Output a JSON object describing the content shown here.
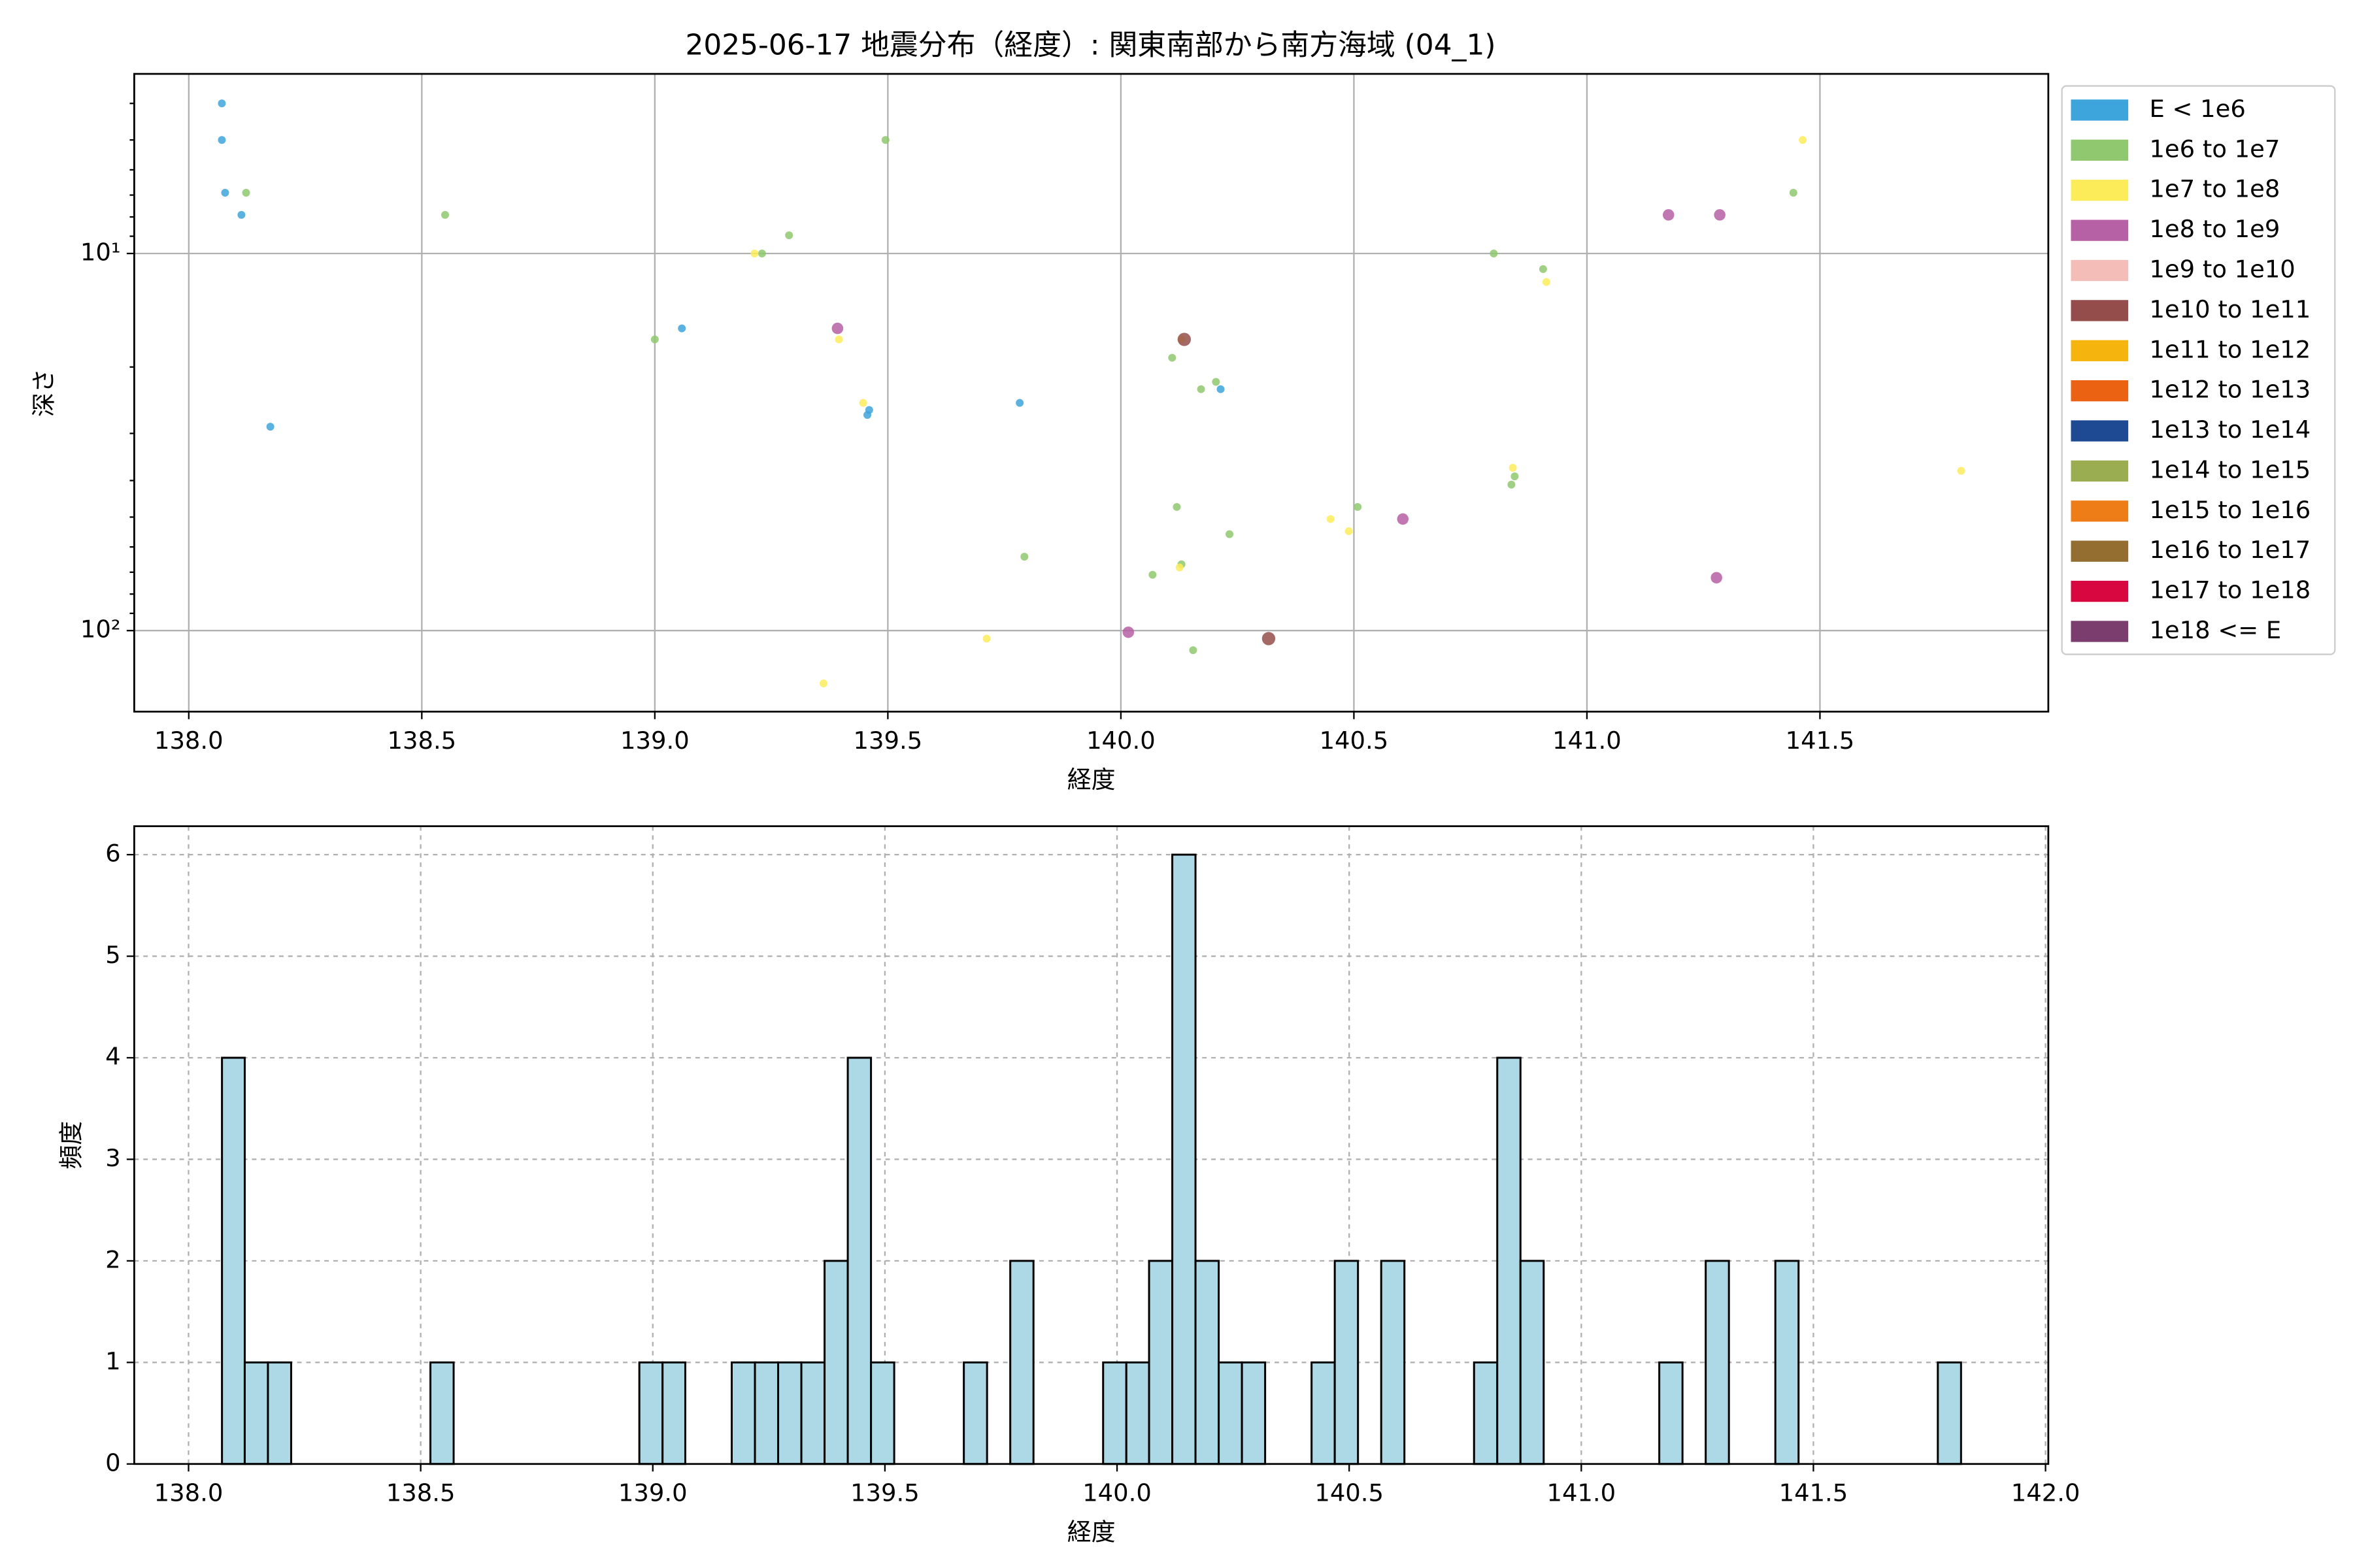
{
  "chart_data": [
    {
      "type": "scatter",
      "title": "2025-06-17 地震分布（経度）: 関東南部から南方海域 (04_1)",
      "x_label": "経度",
      "y_label": "深さ",
      "xlim": [
        137.883,
        141.99
      ],
      "ylim": [
        3.34,
        164
      ],
      "y_scale": "log",
      "y_inverted": true,
      "grid": true,
      "legend": "outside right",
      "xticks": [
        {
          "value": 138,
          "label": "138.0"
        },
        {
          "value": 138.5,
          "label": "138.5"
        },
        {
          "value": 139,
          "label": "139.0"
        },
        {
          "value": 139.5,
          "label": "139.5"
        },
        {
          "value": 140,
          "label": "140.0"
        },
        {
          "value": 140.5,
          "label": "140.5"
        },
        {
          "value": 141,
          "label": "141.0"
        },
        {
          "value": 141.5,
          "label": "141.5"
        }
      ],
      "yticks": [
        {
          "value": 10,
          "label": "10¹"
        },
        {
          "value": 100,
          "label": "10²"
        }
      ],
      "yminorticks": [
        4,
        5,
        6,
        7,
        8,
        9,
        20,
        30,
        40,
        50,
        60,
        70,
        80,
        90
      ],
      "series": [
        {
          "name": "E < 1e6",
          "color": "#3ea4dc",
          "x": [
            138.071,
            138.071,
            138.078,
            138.113,
            138.175,
            139.058,
            139.46,
            139.456,
            139.783,
            140.214
          ],
          "values": [
            4.0,
            5.0,
            6.9,
            7.9,
            28.8,
            15.8,
            26,
            26.8,
            24.9,
            22.9
          ]
        },
        {
          "name": "1e6 to 1e7",
          "color": "#8fc86f",
          "x": [
            138.123,
            138.55,
            139.495,
            139.23,
            139.288,
            139.0,
            139.793,
            140.068,
            140.11,
            140.12,
            140.13,
            140.172,
            140.204,
            140.155,
            140.233,
            140.508,
            140.8,
            140.906,
            140.845,
            140.838,
            141.443
          ],
          "values": [
            6.9,
            7.9,
            5.0,
            10,
            8.95,
            16.9,
            63.7,
            71.1,
            18.9,
            47,
            66.7,
            22.9,
            21.9,
            112.7,
            55.5,
            47,
            10,
            11,
            39,
            41,
            6.9
          ]
        },
        {
          "name": "1e7 to 1e8",
          "color": "#fdec5a",
          "x": [
            139.214,
            139.395,
            139.447,
            139.362,
            139.712,
            140.13,
            140.126,
            140.45,
            140.489,
            140.841,
            140.913,
            141.463,
            141.803
          ],
          "values": [
            10,
            16.9,
            24.9,
            138,
            105,
            16.9,
            68,
            50.6,
            54.5,
            37,
            11.9,
            5.0,
            37.7
          ]
        },
        {
          "name": "1e8 to 1e9",
          "color": "#b660a5",
          "x": [
            139.392,
            140.016,
            140.605,
            141.175,
            141.285,
            141.278
          ],
          "values": [
            15.8,
            101,
            50.6,
            7.9,
            7.9,
            72.4
          ]
        },
        {
          "name": "1e9 to 1e10",
          "color": "#f4bdb7",
          "x": [],
          "values": []
        },
        {
          "name": "1e10 to 1e11",
          "color": "#944d4a",
          "x": [
            140.317,
            140.136
          ],
          "values": [
            105,
            16.9
          ]
        },
        {
          "name": "1e11 to 1e12",
          "color": "#f6b40f",
          "x": [],
          "values": []
        },
        {
          "name": "1e12 to 1e13",
          "color": "#ea6212",
          "x": [],
          "values": []
        },
        {
          "name": "1e13 to 1e14",
          "color": "#1d4a92",
          "x": [],
          "values": []
        },
        {
          "name": "1e14 to 1e15",
          "color": "#9aae51",
          "x": [],
          "values": []
        },
        {
          "name": "1e15 to 1e16",
          "color": "#ee7c17",
          "x": [],
          "values": []
        },
        {
          "name": "1e16 to 1e17",
          "color": "#946e31",
          "x": [],
          "values": []
        },
        {
          "name": "1e17 to 1e18",
          "color": "#d9073f",
          "x": [],
          "values": []
        },
        {
          "name": "1e18 <= E",
          "color": "#7a3d6e",
          "x": [],
          "values": []
        }
      ]
    },
    {
      "type": "histogram",
      "x_label": "経度",
      "y_label": "頻度",
      "color": "#add8e6",
      "edge_color": "#000000",
      "grid": "dashed",
      "xlim": [
        137.883,
        142.006
      ],
      "ylim": [
        0,
        6.28
      ],
      "xticks": [
        {
          "value": 138,
          "label": "138.0"
        },
        {
          "value": 138.5,
          "label": "138.5"
        },
        {
          "value": 139,
          "label": "139.0"
        },
        {
          "value": 139.5,
          "label": "139.5"
        },
        {
          "value": 140,
          "label": "140.0"
        },
        {
          "value": 140.5,
          "label": "140.5"
        },
        {
          "value": 141,
          "label": "141.0"
        },
        {
          "value": 141.5,
          "label": "141.5"
        },
        {
          "value": 142,
          "label": "142.0"
        }
      ],
      "yticks": [
        0,
        1,
        2,
        3,
        4,
        5,
        6
      ],
      "bins": [
        138.072,
        138.121,
        138.171,
        138.221,
        138.271,
        138.321,
        138.371,
        138.421,
        138.471,
        138.521,
        138.571,
        138.621,
        138.671,
        138.721,
        138.771,
        138.821,
        138.871,
        138.921,
        138.971,
        139.021,
        139.07,
        139.12,
        139.17,
        139.22,
        139.27,
        139.32,
        139.37,
        139.42,
        139.47,
        139.52,
        139.57,
        139.62,
        139.67,
        139.72,
        139.77,
        139.82,
        139.87,
        139.92,
        139.97,
        140.02,
        140.069,
        140.119,
        140.169,
        140.219,
        140.269,
        140.319,
        140.369,
        140.419,
        140.469,
        140.519,
        140.569,
        140.619,
        140.669,
        140.719,
        140.769,
        140.819,
        140.869,
        140.919,
        140.969,
        141.019,
        141.068,
        141.118,
        141.168,
        141.218,
        141.268,
        141.318,
        141.368,
        141.418,
        141.468,
        141.518,
        141.568,
        141.618,
        141.668,
        141.718,
        141.768,
        141.818
      ],
      "values": [
        4,
        1,
        1,
        0,
        0,
        0,
        0,
        0,
        0,
        1,
        0,
        0,
        0,
        0,
        0,
        0,
        0,
        0,
        1,
        1,
        0,
        0,
        1,
        1,
        1,
        1,
        2,
        4,
        1,
        0,
        0,
        0,
        1,
        0,
        2,
        0,
        0,
        0,
        1,
        1,
        2,
        6,
        2,
        1,
        1,
        0,
        0,
        1,
        2,
        0,
        2,
        0,
        0,
        0,
        1,
        4,
        2,
        0,
        0,
        0,
        0,
        0,
        1,
        0,
        2,
        0,
        0,
        2,
        0,
        0,
        0,
        0,
        0,
        0,
        1
      ]
    }
  ]
}
